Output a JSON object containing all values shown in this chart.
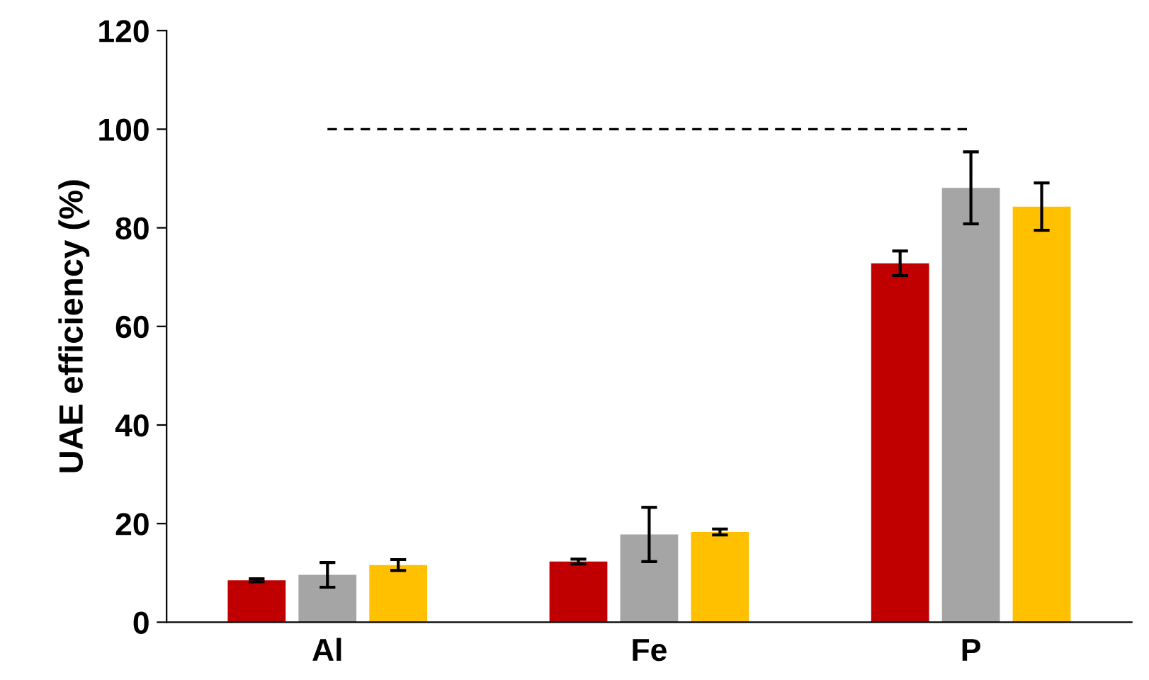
{
  "chart_data": {
    "type": "bar",
    "ylabel": "UAE efficiency (%)",
    "categories": [
      "Al",
      "Fe",
      "P"
    ],
    "series": [
      {
        "color": "#c00000",
        "values": [
          8.5,
          12.3,
          72.8
        ],
        "errors": [
          0.3,
          0.5,
          2.5
        ]
      },
      {
        "color": "#a5a5a5",
        "values": [
          9.6,
          17.8,
          88.1
        ],
        "errors": [
          2.5,
          5.5,
          7.3
        ]
      },
      {
        "color": "#ffc000",
        "values": [
          11.6,
          18.3,
          84.3
        ],
        "errors": [
          1.1,
          0.6,
          4.8
        ]
      },
      {
        "type": "line",
        "color": "#000000",
        "line_style": "dashed",
        "marker": "none",
        "values": [
          100,
          100,
          100
        ]
      }
    ],
    "ylim": [
      0,
      120
    ],
    "yticks": [
      0,
      20,
      40,
      60,
      80,
      100,
      120
    ],
    "grid": false,
    "legend": false
  }
}
